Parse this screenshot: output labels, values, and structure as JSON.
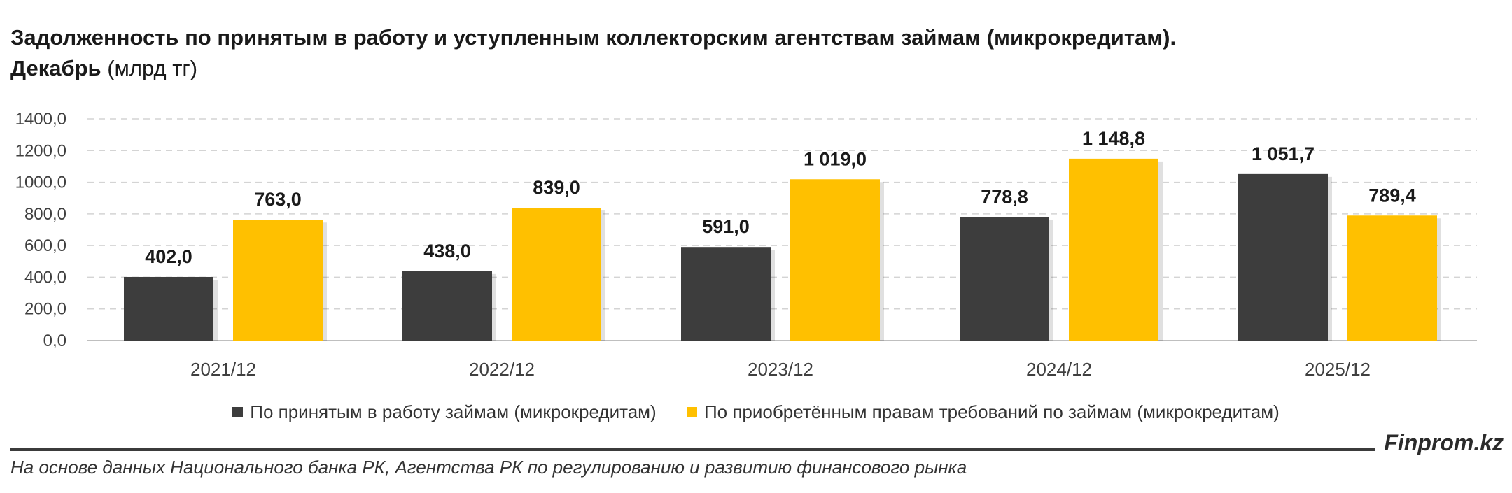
{
  "header": {
    "title_main": "Задолженность по принятым в работу и уступленным коллекторским агентствам займам (микрокредитам).",
    "title_bold": "Декабрь",
    "title_unit": "(млрд тг)"
  },
  "chart_data": {
    "type": "bar",
    "categories": [
      "2021/12",
      "2022/12",
      "2023/12",
      "2024/12",
      "2025/12"
    ],
    "series": [
      {
        "name": "По принятым в работу займам (микрокредитам)",
        "color": "#3d3d3d",
        "values": [
          402.0,
          438.0,
          591.0,
          778.8,
          1051.7
        ],
        "labels": [
          "402,0",
          "438,0",
          "591,0",
          "778,8",
          "1 051,7"
        ]
      },
      {
        "name": "По приобретённым правам требований по займам (микрокредитам)",
        "color": "#ffc000",
        "values": [
          763.0,
          839.0,
          1019.0,
          1148.8,
          789.4
        ],
        "labels": [
          "763,0",
          "839,0",
          "1 019,0",
          "1 148,8",
          "789,4"
        ]
      }
    ],
    "ylim": [
      0,
      1400
    ],
    "yticks": [
      "0,0",
      "200,0",
      "400,0",
      "600,0",
      "800,0",
      "1000,0",
      "1200,0",
      "1400,0"
    ],
    "grid": true,
    "legend_position": "bottom"
  },
  "footer": {
    "brand": "Finprom.kz",
    "source": "На основе данных Национального банка РК, Агентства РК по регулированию и развитию финансового рынка"
  }
}
